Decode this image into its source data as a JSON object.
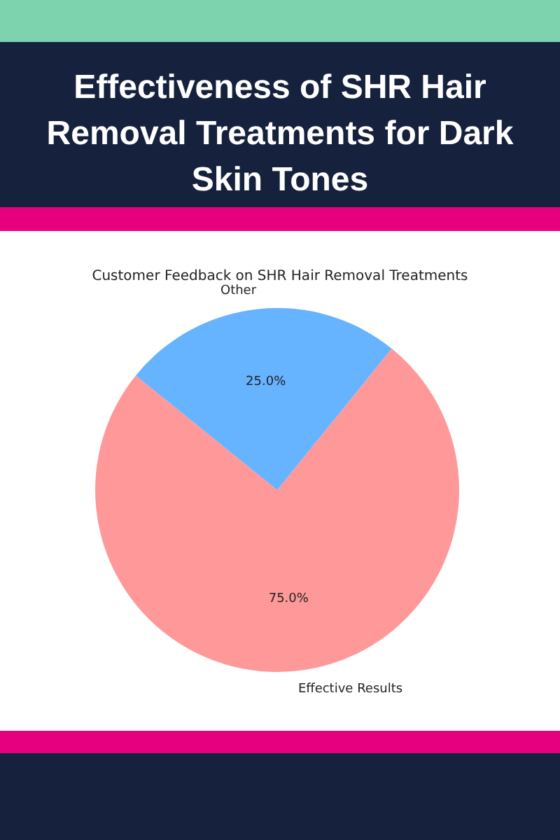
{
  "chart_data": {
    "type": "pie",
    "title": "Effectiveness of SHR Hair Removal Treatments for Dark Skin Tones",
    "subtitle": "Customer Feedback on SHR Hair Removal Treatments",
    "categories": [
      "Effective Results",
      "Other"
    ],
    "values": [
      75,
      25
    ],
    "colors": [
      "#ff9999",
      "#66b3ff"
    ],
    "value_labels": [
      "75.0%",
      "25.0%"
    ]
  }
}
